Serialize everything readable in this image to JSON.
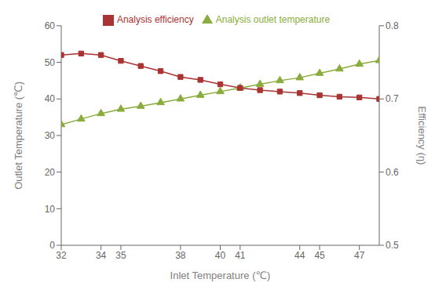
{
  "chart_data": {
    "type": "line",
    "x": [
      32,
      33,
      34,
      35,
      36,
      37,
      38,
      39,
      40,
      41,
      42,
      43,
      44,
      45,
      46,
      47,
      48
    ],
    "series": [
      {
        "name": "Analysis outlet temperature",
        "color": "#8aac3c",
        "marker": "triangle",
        "line_style": "solid",
        "values": [
          33.0,
          34.5,
          36.0,
          37.2,
          38.0,
          39.0,
          40.0,
          41.0,
          42.0,
          43.0,
          44.0,
          45.0,
          45.8,
          47.0,
          48.2,
          49.5,
          50.5
        ]
      },
      {
        "name": "Analysis efficiency",
        "color": "#aa3333",
        "marker": "square",
        "line_style": "solid",
        "axis": "y2",
        "values": [
          0.76,
          0.762,
          0.76,
          0.752,
          0.745,
          0.738,
          0.73,
          0.726,
          0.72,
          0.715,
          0.712,
          0.71,
          0.708,
          0.705,
          0.703,
          0.702,
          0.7
        ]
      }
    ],
    "xlabel": "Inlet Temperature (℃)",
    "ylabel": "Outlet Temperature (℃)",
    "y2label": "Efficiency (η)",
    "xlim": [
      32,
      48
    ],
    "xticks": [
      32,
      34,
      35,
      38,
      40,
      41,
      44,
      45,
      47
    ],
    "ylim": [
      0,
      60
    ],
    "yticks": [
      0,
      10,
      20,
      30,
      40,
      50,
      60
    ],
    "y2lim": [
      0.5,
      0.8
    ],
    "y2ticks": [
      0.5,
      0.6,
      0.7,
      0.8
    ],
    "grid": false,
    "legend": "top"
  }
}
